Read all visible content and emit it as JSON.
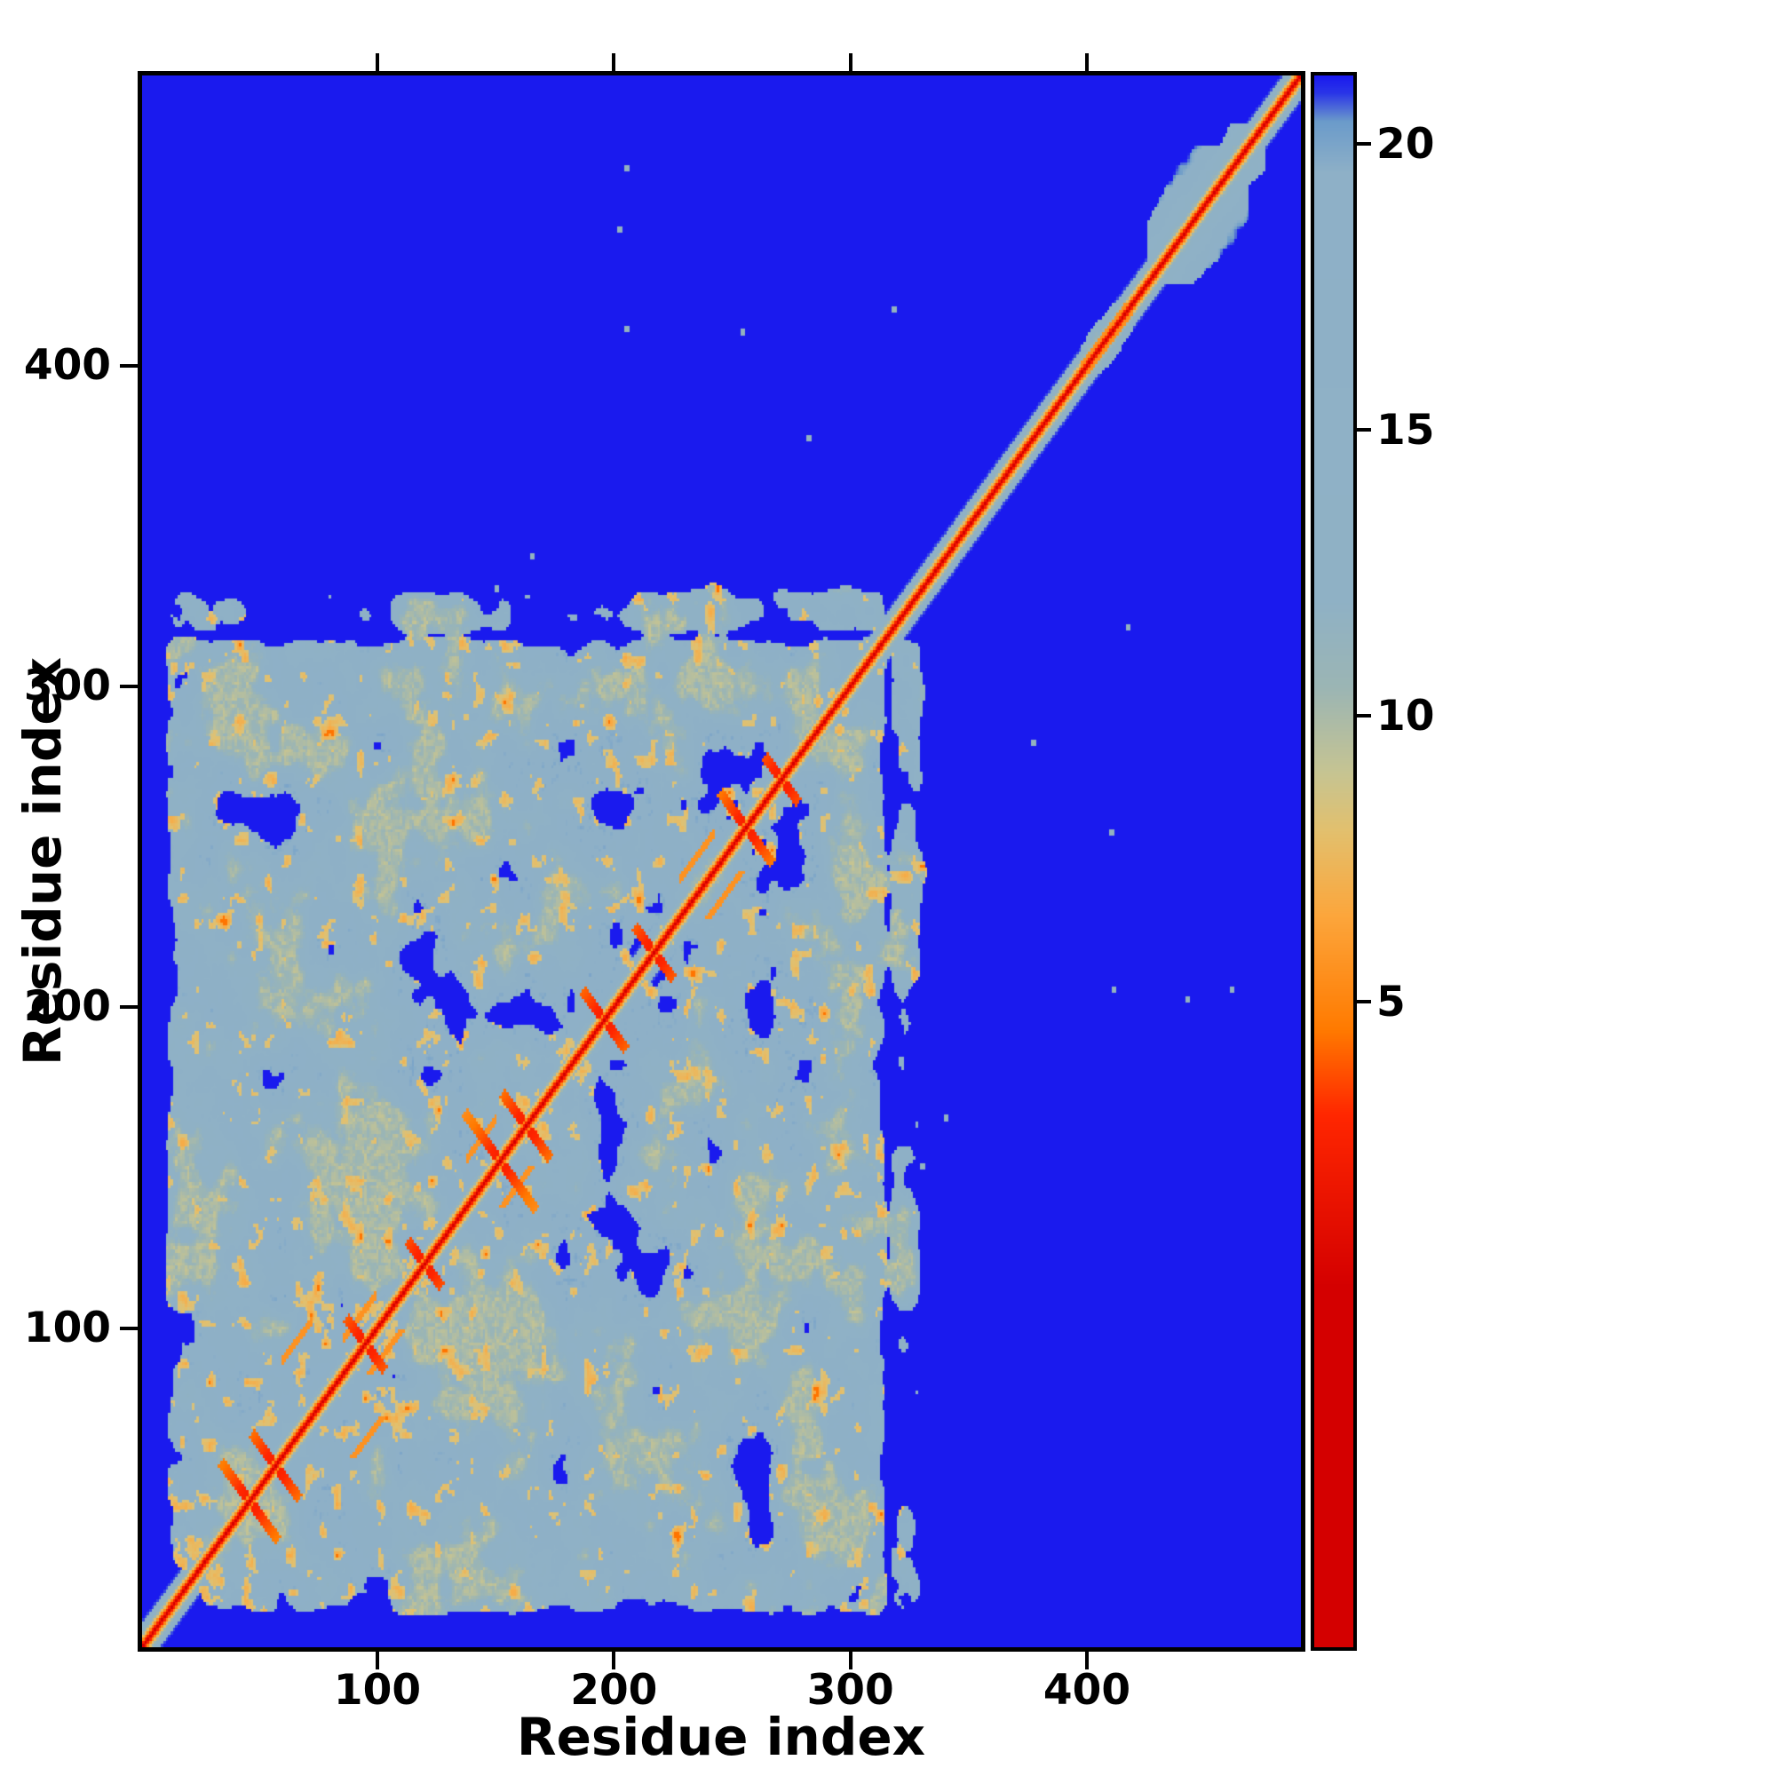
{
  "chart_data": {
    "type": "heatmap",
    "title": "",
    "xlabel": "Residue index",
    "ylabel": "Residue index",
    "x_range": [
      1,
      490
    ],
    "y_range": [
      1,
      490
    ],
    "x_ticks": [
      100,
      200,
      300,
      400
    ],
    "y_ticks": [
      100,
      200,
      300,
      400
    ],
    "n_residues": 490,
    "grid": false,
    "legend": "none",
    "colorbar": {
      "position": "right",
      "ticks": [
        20,
        15,
        10,
        5
      ],
      "value_at_top": 21.2,
      "value_span": 27.5
    },
    "background_color": "#1a1aee",
    "diagonal_color": "#d40000",
    "colormap_stops": [
      [
        0,
        "#d40000"
      ],
      [
        3,
        "#ff2600"
      ],
      [
        4.5,
        "#ff7a00"
      ],
      [
        6.5,
        "#fca63c"
      ],
      [
        8,
        "#e2c06e"
      ],
      [
        9,
        "#c6c492"
      ],
      [
        10.5,
        "#9bb5b4"
      ],
      [
        12,
        "#8fb1c5"
      ],
      [
        19.5,
        "#8eb0c7"
      ],
      [
        20.4,
        "#6b9bca"
      ],
      [
        20.9,
        "#2a35e8"
      ],
      [
        21.2,
        "#1a1aee"
      ]
    ],
    "description": "Symmetric residue-residue distance map. Red diagonal = zero/short distance, orange = close contacts, light blue-gray = mid-range, deep blue = far. Dense folded-domain contact block spans residues ~13-312 with red/orange hairpin streaks near the diagonal; residues ~312-430 show only the thin diagonal band with small bulges near 350, 390-410; a small structured block appears at ~428-472; a few isolated gray specks lie in the far-apart blue region.",
    "synthesis": {
      "far_value": 28,
      "diag_slope": 2.6,
      "edge_fuzz": 30,
      "domain1": {
        "start": 13,
        "end": 312,
        "seed": 0
      },
      "bulges": [
        {
          "start": 312,
          "end": 323,
          "w": 8,
          "orange": false
        },
        {
          "start": 345,
          "end": 362,
          "w": 5,
          "orange": false
        },
        {
          "start": 400,
          "end": 417,
          "w": 8,
          "orange": true
        },
        {
          "start": 428,
          "end": 473,
          "w": 20,
          "orange": false
        }
      ],
      "hairpins": [
        {
          "c": 46,
          "L": 24
        },
        {
          "c": 57,
          "L": 20
        },
        {
          "c": 95,
          "L": 16
        },
        {
          "c": 120,
          "L": 14
        },
        {
          "c": 152,
          "L": 30
        },
        {
          "c": 163,
          "L": 20
        },
        {
          "c": 196,
          "L": 18
        },
        {
          "c": 217,
          "L": 16
        },
        {
          "c": 256,
          "L": 22
        },
        {
          "c": 271,
          "L": 14
        }
      ],
      "streaks": [
        {
          "start": 86,
          "end": 99,
          "off": 11
        },
        {
          "start": 138,
          "end": 150,
          "off": 15
        },
        {
          "start": 228,
          "end": 242,
          "off": 12
        },
        {
          "start": 60,
          "end": 72,
          "off": 30
        }
      ],
      "sparse_contacts": [
        [
          205,
          411
        ],
        [
          254,
          410
        ],
        [
          282,
          377
        ],
        [
          318,
          417
        ],
        [
          202,
          442
        ],
        [
          165,
          340
        ],
        [
          205,
          461
        ],
        [
          150,
          330
        ]
      ]
    }
  }
}
